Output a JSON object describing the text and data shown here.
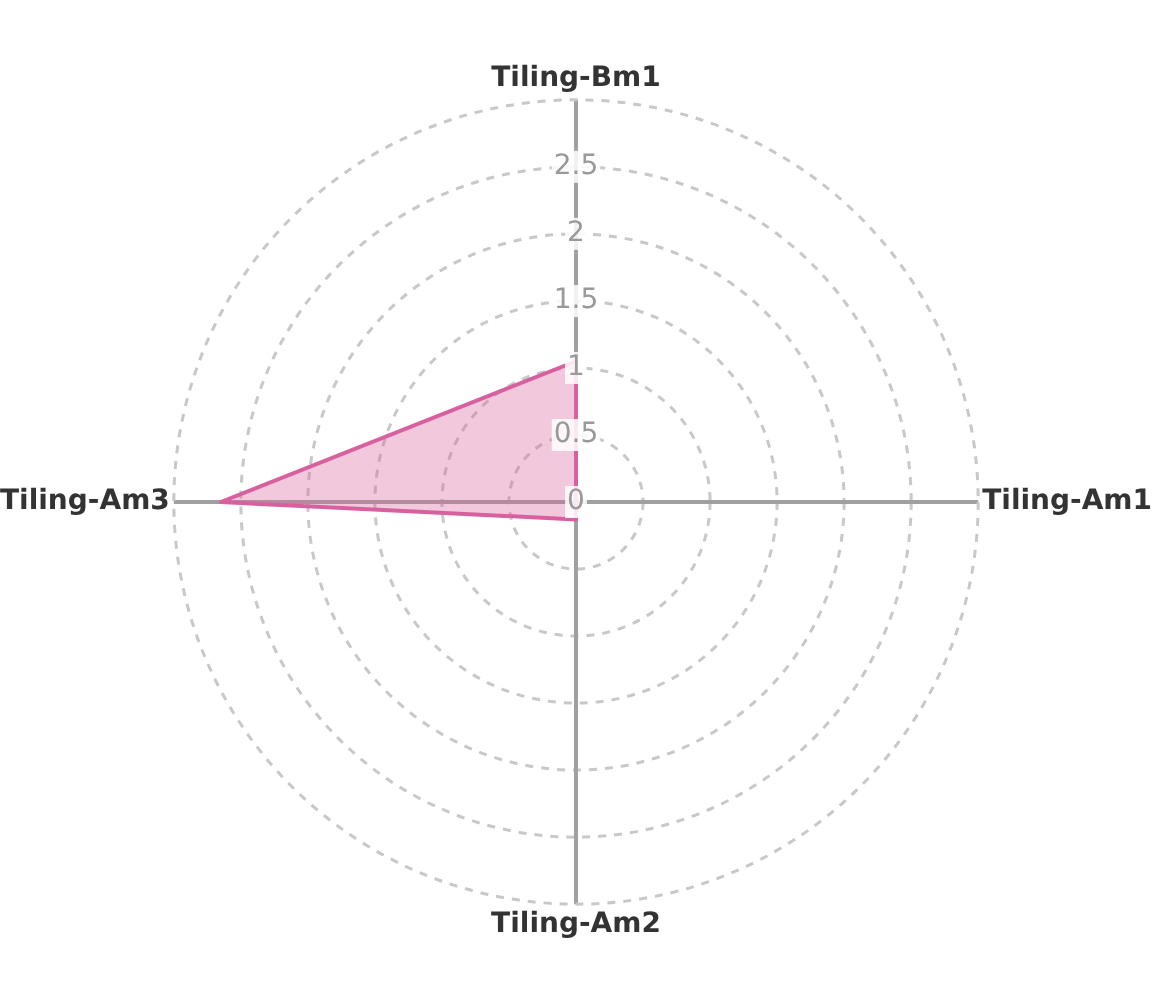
{
  "chart_data": {
    "type": "radar",
    "categories": [
      "Tiling-Bm1",
      "Tiling-Am1",
      "Tiling-Am2",
      "Tiling-Am3"
    ],
    "series": [
      {
        "color": "#d9609f",
        "values": [
          1.05,
          0,
          0.13,
          2.65
        ]
      }
    ],
    "ylim": [
      0,
      3
    ],
    "yticks": [
      0,
      0.5,
      1,
      1.5,
      2,
      2.5
    ],
    "grid": true,
    "legend": false,
    "marker": "none"
  }
}
